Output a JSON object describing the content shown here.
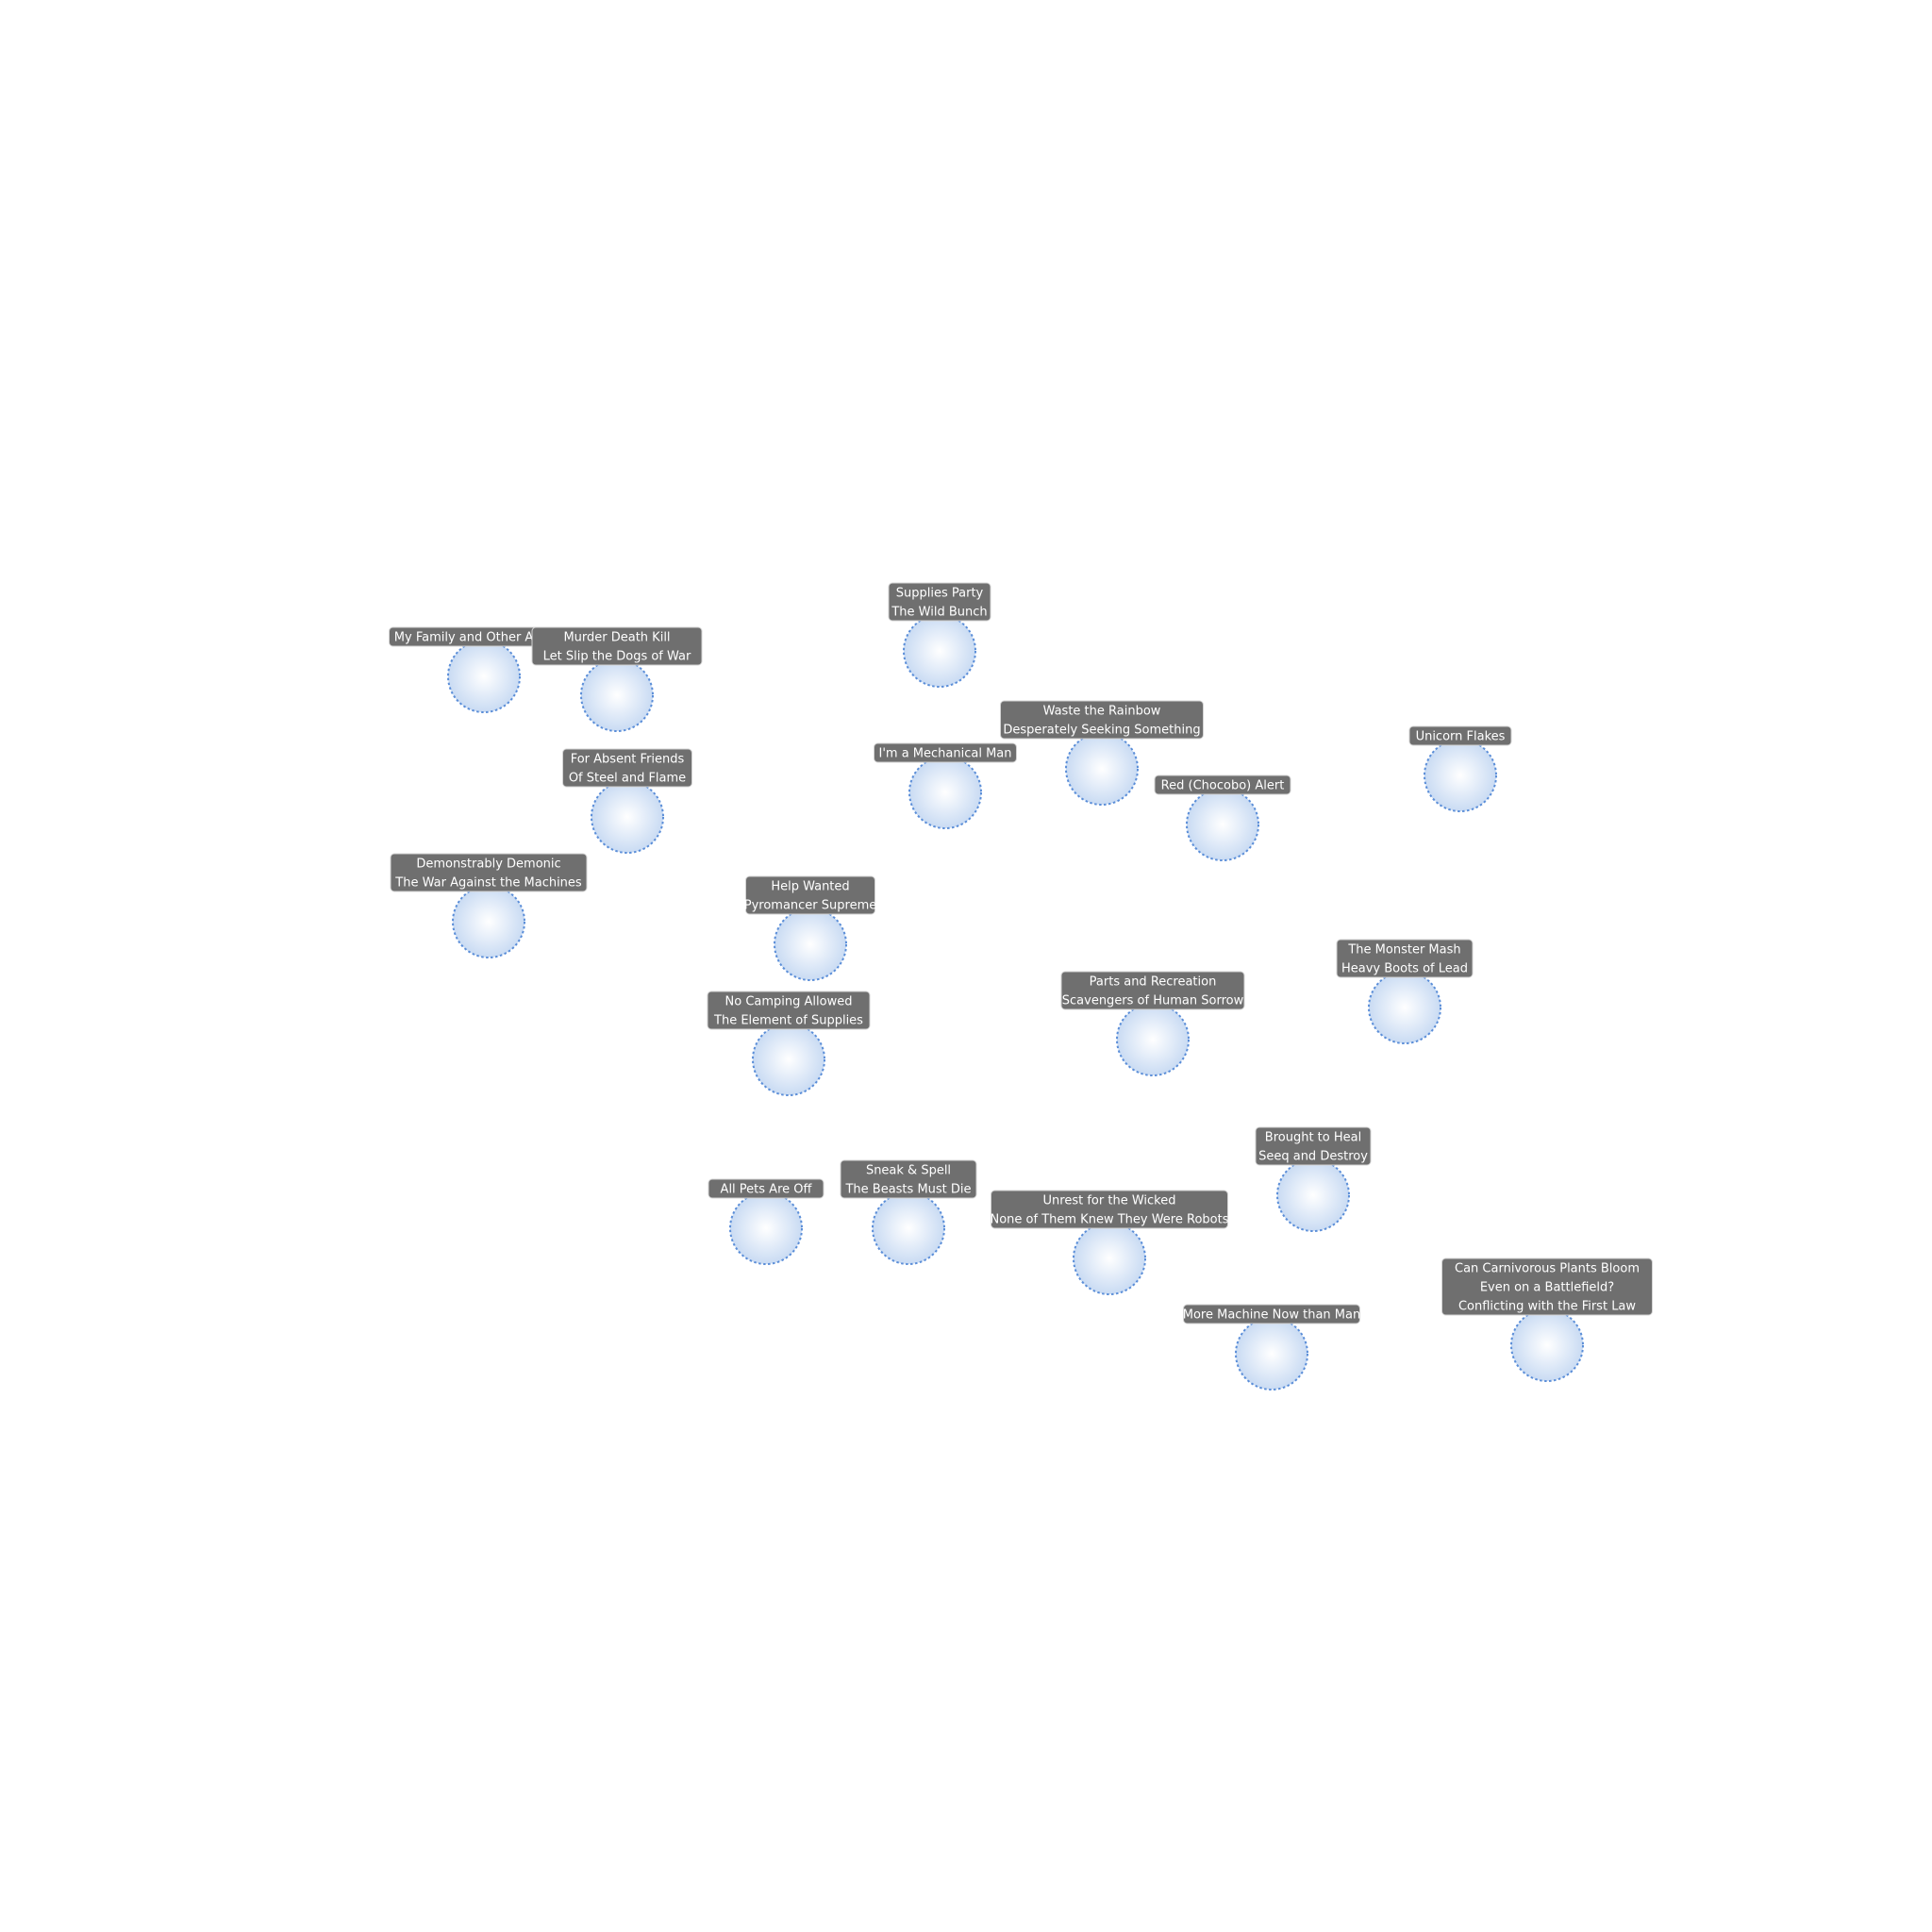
{
  "diagram": {
    "colors": {
      "node_fill_center": "#ffffff",
      "node_fill_edge": "#c9dbf3",
      "node_stroke": "#5b8ed8",
      "label_bg": "#6f6f6f",
      "label_text": "#ffffff"
    },
    "nodes": [
      {
        "id": "n1",
        "lines": [
          "My Family and Other Animals"
        ]
      },
      {
        "id": "n2",
        "lines": [
          "Murder Death Kill",
          "Let Slip the Dogs of War"
        ]
      },
      {
        "id": "n3",
        "lines": [
          "Supplies Party",
          "The Wild Bunch"
        ]
      },
      {
        "id": "n4",
        "lines": [
          "Waste the Rainbow",
          "Desperately Seeking Something"
        ]
      },
      {
        "id": "n5",
        "lines": [
          "I'm a Mechanical Man"
        ]
      },
      {
        "id": "n6",
        "lines": [
          "Red (Chocobo) Alert"
        ]
      },
      {
        "id": "n7",
        "lines": [
          "Unicorn Flakes"
        ]
      },
      {
        "id": "n8",
        "lines": [
          "For Absent Friends",
          "Of Steel and Flame"
        ]
      },
      {
        "id": "n9",
        "lines": [
          "Demonstrably Demonic",
          "The War Against the Machines"
        ]
      },
      {
        "id": "n10",
        "lines": [
          "Help Wanted",
          "Pyromancer Supreme"
        ]
      },
      {
        "id": "n11",
        "lines": [
          "The Monster Mash",
          "Heavy Boots of Lead"
        ]
      },
      {
        "id": "n12",
        "lines": [
          "Parts and Recreation",
          "Scavengers of Human Sorrow"
        ]
      },
      {
        "id": "n13",
        "lines": [
          "No Camping Allowed",
          "The Element of Supplies"
        ]
      },
      {
        "id": "n14",
        "lines": [
          "Brought to Heal",
          "Seeq and Destroy"
        ]
      },
      {
        "id": "n15",
        "lines": [
          "Sneak & Spell",
          "The Beasts Must Die"
        ]
      },
      {
        "id": "n16",
        "lines": [
          "All Pets Are Off"
        ]
      },
      {
        "id": "n17",
        "lines": [
          "Unrest for the Wicked",
          "None of Them Knew They Were Robots"
        ]
      },
      {
        "id": "n18",
        "lines": [
          "More Machine Now than Man"
        ]
      },
      {
        "id": "n19",
        "lines": [
          "Can Carnivorous Plants Bloom",
          "Even on a Battlefield?",
          "Conflicting with the First Law"
        ]
      }
    ]
  }
}
